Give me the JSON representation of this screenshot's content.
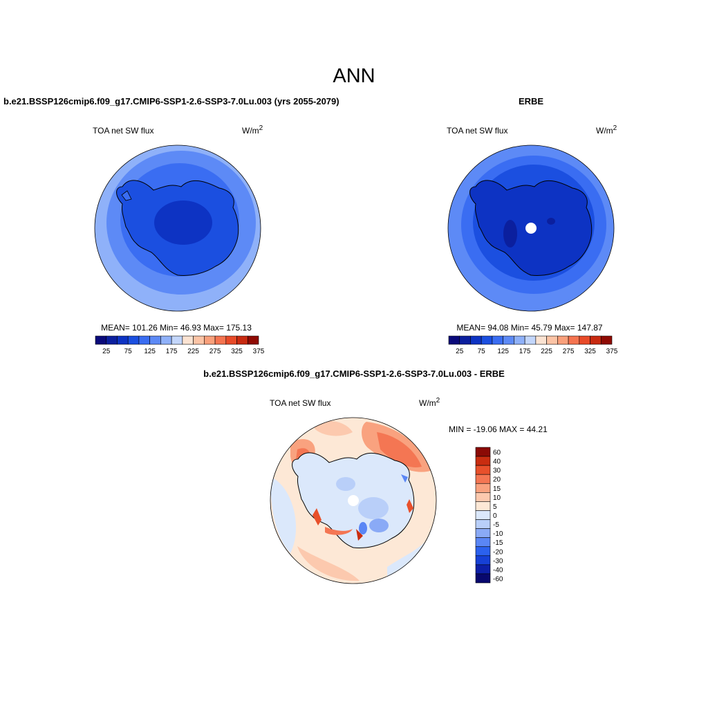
{
  "figure": {
    "title": "ANN",
    "bottom_title": "b.e21.BSSP126cmip6.f09_g17.CMIP6-SSP1-2.6-SSP3-7.0Lu.003 - ERBE"
  },
  "colors": {
    "abs_scale": [
      "#0a0a7a",
      "#0b1f9e",
      "#0d33c3",
      "#1b4fe0",
      "#3a6df2",
      "#5d8af6",
      "#8fb1f9",
      "#c3d6fb",
      "#fbe3d2",
      "#fcc4a6",
      "#f9a07b",
      "#f57450",
      "#e84a28",
      "#c82a10",
      "#8f0a03"
    ],
    "diff_scale": [
      "#08086e",
      "#0d1fa8",
      "#1640d6",
      "#2b61ee",
      "#5a86f5",
      "#8aaaf6",
      "#b9cff9",
      "#dbe8fb",
      "#fde8d6",
      "#fcc9ae",
      "#f9a27f",
      "#f47653",
      "#e8502b",
      "#c92d10",
      "#8b0a05"
    ],
    "coast": "#000000"
  },
  "chart_data": [
    {
      "type": "heatmap",
      "panel": "model",
      "title": "b.e21.BSSP126cmip6.f09_g17.CMIP6-SSP1-2.6-SSP3-7.0Lu.003 (yrs 2055-2079)",
      "variable": "TOA net SW flux",
      "units": "W/m",
      "units_sup": "2",
      "stats": "MEAN= 101.26  Min=  46.93  Max= 175.13",
      "mean": 101.26,
      "min": 46.93,
      "max": 175.13,
      "colorbar_levels": [
        25,
        75,
        125,
        175,
        225,
        275,
        325,
        375
      ],
      "colorbar_tick_labels": [
        "25",
        "75",
        "125",
        "175",
        "225",
        "275",
        "325",
        "375"
      ],
      "colorbar_bins": 15,
      "legend": "bottom",
      "projection": "south-polar-stereographic"
    },
    {
      "type": "heatmap",
      "panel": "obs",
      "title": "ERBE",
      "variable": "TOA net SW flux",
      "units": "W/m",
      "units_sup": "2",
      "stats": "MEAN=  94.08  Min=  45.79  Max= 147.87",
      "mean": 94.08,
      "min": 45.79,
      "max": 147.87,
      "colorbar_levels": [
        25,
        75,
        125,
        175,
        225,
        275,
        325,
        375
      ],
      "colorbar_tick_labels": [
        "25",
        "75",
        "125",
        "175",
        "225",
        "275",
        "325",
        "375"
      ],
      "colorbar_bins": 15,
      "legend": "bottom",
      "projection": "south-polar-stereographic"
    },
    {
      "type": "heatmap",
      "panel": "difference",
      "title": "b.e21.BSSP126cmip6.f09_g17.CMIP6-SSP1-2.6-SSP3-7.0Lu.003 - ERBE",
      "variable": "TOA net SW flux",
      "units": "W/m",
      "units_sup": "2",
      "stats": "MIN = -19.06 MAX =  44.21",
      "min": -19.06,
      "max": 44.21,
      "colorbar_tick_labels": [
        "60",
        "40",
        "30",
        "20",
        "15",
        "10",
        "5",
        "0",
        "-5",
        "-10",
        "-15",
        "-20",
        "-30",
        "-40",
        "-60"
      ],
      "colorbar_bins": 15,
      "legend": "right",
      "projection": "south-polar-stereographic"
    }
  ]
}
